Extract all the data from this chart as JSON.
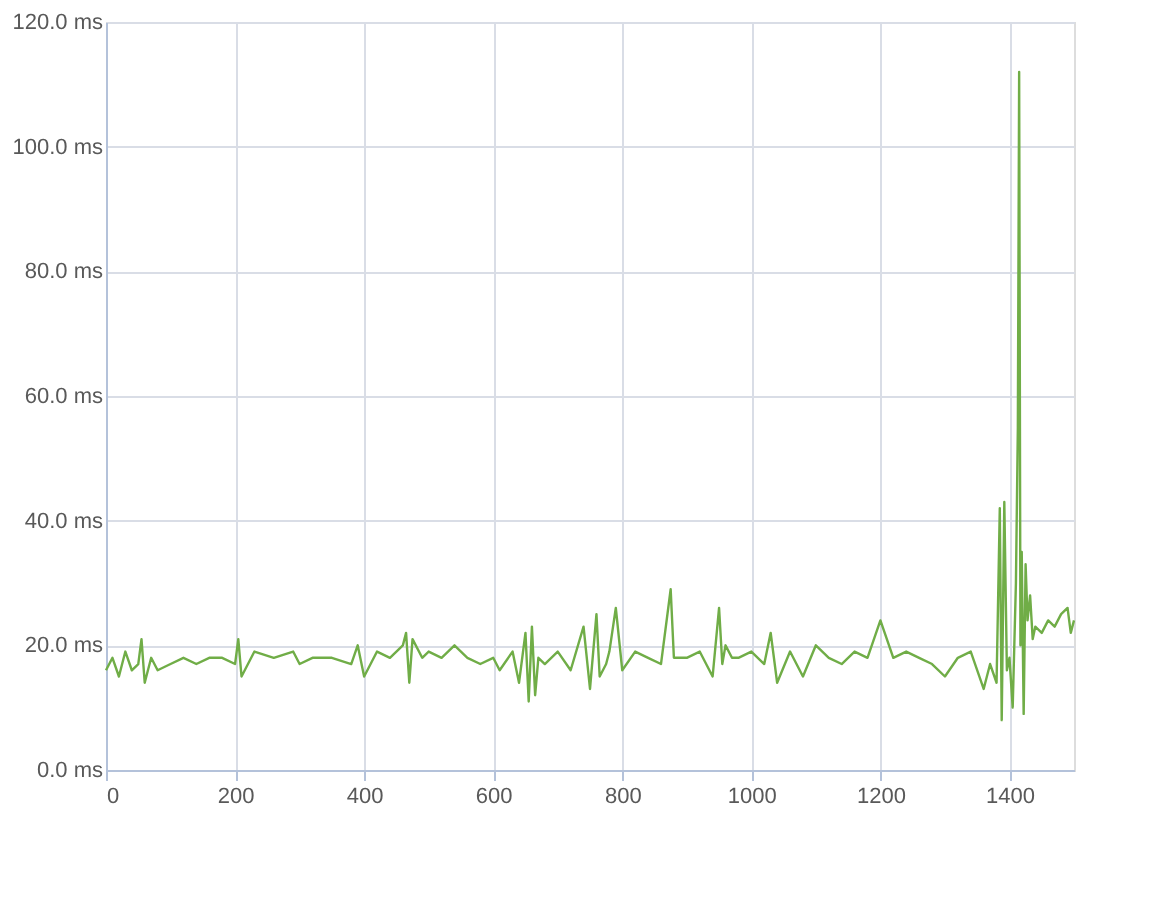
{
  "chart_data": {
    "type": "line",
    "x": [
      0,
      10,
      20,
      30,
      40,
      50,
      55,
      60,
      70,
      80,
      100,
      120,
      140,
      160,
      180,
      200,
      205,
      210,
      230,
      260,
      290,
      300,
      320,
      350,
      380,
      390,
      400,
      420,
      440,
      460,
      465,
      470,
      475,
      490,
      500,
      520,
      540,
      560,
      580,
      600,
      610,
      630,
      640,
      650,
      655,
      660,
      665,
      670,
      680,
      700,
      720,
      740,
      750,
      760,
      765,
      775,
      780,
      790,
      800,
      820,
      840,
      860,
      875,
      880,
      900,
      920,
      940,
      950,
      955,
      960,
      970,
      980,
      1000,
      1020,
      1030,
      1040,
      1060,
      1080,
      1100,
      1120,
      1140,
      1160,
      1180,
      1200,
      1220,
      1240,
      1260,
      1280,
      1300,
      1320,
      1340,
      1360,
      1370,
      1380,
      1385,
      1388,
      1392,
      1396,
      1400,
      1405,
      1410,
      1413,
      1415,
      1417,
      1419,
      1422,
      1425,
      1428,
      1432,
      1436,
      1440,
      1450,
      1460,
      1470,
      1480,
      1490,
      1495,
      1500
    ],
    "series": [
      {
        "color": "#70ad47",
        "values": [
          16,
          18,
          15,
          19,
          16,
          17,
          21,
          14,
          18,
          16,
          17,
          18,
          17,
          18,
          18,
          17,
          21,
          15,
          19,
          18,
          19,
          17,
          18,
          18,
          17,
          20,
          15,
          19,
          18,
          20,
          22,
          14,
          21,
          18,
          19,
          18,
          20,
          18,
          17,
          18,
          16,
          19,
          14,
          22,
          11,
          23,
          12,
          18,
          17,
          19,
          16,
          23,
          13,
          25,
          15,
          17,
          19,
          26,
          16,
          19,
          18,
          17,
          29,
          18,
          18,
          19,
          15,
          26,
          17,
          20,
          18,
          18,
          19,
          17,
          22,
          14,
          19,
          15,
          20,
          18,
          17,
          19,
          18,
          24,
          18,
          19,
          18,
          17,
          15,
          18,
          19,
          13,
          17,
          14,
          42,
          8,
          43,
          16,
          18,
          10,
          30,
          55,
          112,
          20,
          35,
          9,
          33,
          24,
          28,
          21,
          23,
          22,
          24,
          23,
          25,
          26,
          22,
          24
        ]
      }
    ],
    "xlim": [
      0,
      1500
    ],
    "xticks": [
      0,
      200,
      400,
      600,
      800,
      1000,
      1200,
      1400
    ],
    "ylim": [
      0,
      120
    ],
    "yticks": [
      {
        "value": 0,
        "label": "0.0 ms"
      },
      {
        "value": 20,
        "label": "20.0 ms"
      },
      {
        "value": 40,
        "label": "40.0 ms"
      },
      {
        "value": 60,
        "label": "60.0 ms"
      },
      {
        "value": 80,
        "label": "80.0 ms"
      },
      {
        "value": 100,
        "label": "100.0 ms"
      },
      {
        "value": 120,
        "label": "120.0 ms"
      }
    ],
    "grid": true,
    "marker": "none",
    "line_style": "solid"
  }
}
